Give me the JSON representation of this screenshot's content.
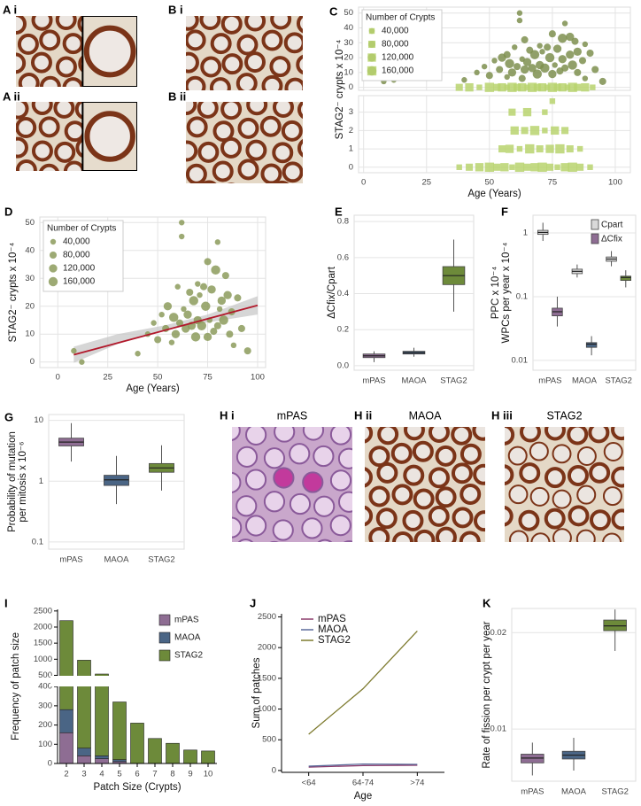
{
  "images": [
    {
      "label": "A i"
    },
    {
      "label": "A ii"
    },
    {
      "label": "B i"
    },
    {
      "label": "B ii"
    },
    {
      "label": "H i",
      "caption": "mPAS"
    },
    {
      "label": "H ii",
      "caption": "MAOA"
    },
    {
      "label": "H iii",
      "caption": "STAG2"
    }
  ],
  "chart_data": [
    {
      "type": "scatter",
      "panel": "C",
      "ylabel": "STAG2⁻ crypts x 10⁻⁴",
      "grid": true,
      "xlim": [
        -2,
        106
      ],
      "ylim": [
        -2,
        54
      ],
      "yticks": [
        0,
        10,
        20,
        30,
        40,
        50
      ],
      "size_legend": {
        "title": "Number of Crypts",
        "keys": [
          {
            "value": 40000,
            "label": "40,000"
          },
          {
            "value": 80000,
            "label": "80,000"
          },
          {
            "value": 120000,
            "label": "120,000"
          },
          {
            "value": 160000,
            "label": "160,000"
          }
        ]
      },
      "series": [
        {
          "marker": "circle",
          "color": "#7e8f4f",
          "x": [
            62,
            62,
            80,
            75,
            82,
            79,
            64,
            84,
            70,
            60,
            88,
            73,
            77,
            66,
            71,
            85,
            57,
            68,
            82,
            90,
            55,
            63,
            74,
            79,
            52,
            65,
            87,
            58,
            70,
            76,
            83,
            48,
            61,
            67,
            72,
            80,
            54,
            64,
            78,
            92,
            45,
            59,
            69,
            75,
            85,
            50,
            57,
            63,
            88,
            40,
            8,
            12,
            95
          ],
          "values": [
            50,
            45,
            43,
            36,
            34,
            33,
            32,
            31,
            28,
            27,
            29,
            27,
            26,
            25,
            24,
            24,
            22,
            22,
            22,
            23,
            20,
            19,
            20,
            19,
            18,
            17,
            18,
            16,
            15,
            15,
            15,
            14,
            14,
            13,
            13,
            13,
            12,
            12,
            11,
            12,
            10,
            10,
            9,
            9,
            10,
            8,
            7,
            6,
            6,
            5,
            4,
            5,
            4
          ],
          "sizes": [
            40000,
            40000,
            40000,
            80000,
            120000,
            160000,
            80000,
            80000,
            40000,
            40000,
            40000,
            80000,
            120000,
            80000,
            40000,
            120000,
            80000,
            160000,
            120000,
            80000,
            120000,
            40000,
            160000,
            120000,
            40000,
            120000,
            80000,
            160000,
            120000,
            40000,
            160000,
            40000,
            80000,
            120000,
            160000,
            80000,
            80000,
            120000,
            80000,
            80000,
            40000,
            120000,
            160000,
            120000,
            80000,
            80000,
            40000,
            80000,
            40000,
            40000,
            40000,
            40000,
            80000
          ]
        },
        {
          "marker": "square",
          "color": "#b8d46e",
          "x": [
            38,
            42,
            46,
            50,
            53,
            55,
            57,
            59,
            61,
            63,
            65,
            67,
            69,
            71,
            73,
            75,
            77,
            79,
            81,
            83,
            85,
            88,
            91
          ],
          "values": [
            0,
            0,
            0,
            0,
            0,
            0,
            0,
            0,
            0,
            0,
            0,
            0,
            0,
            0,
            0,
            0,
            0,
            0,
            0,
            0,
            0,
            0,
            0
          ],
          "sizes": [
            80000,
            120000,
            40000,
            160000,
            80000,
            120000,
            40000,
            160000,
            80000,
            120000,
            40000,
            160000,
            80000,
            120000,
            40000,
            160000,
            80000,
            120000,
            40000,
            160000,
            80000,
            120000,
            40000
          ]
        }
      ]
    },
    {
      "type": "scatter",
      "xlabel": "Age (Years)",
      "grid": true,
      "xlim": [
        -2,
        106
      ],
      "xticks": [
        0,
        25,
        50,
        75,
        100
      ],
      "ylim": [
        -0.3,
        3.9
      ],
      "yticks": [
        0,
        1,
        2,
        3
      ],
      "series": [
        {
          "marker": "square",
          "color": "#b8d46e",
          "x": [
            38,
            42,
            46,
            50,
            53,
            56,
            59,
            62,
            65,
            68,
            71,
            74,
            77,
            80,
            83,
            86,
            90,
            55,
            58,
            62,
            66,
            70,
            74,
            78,
            82,
            86,
            60,
            64,
            68,
            72,
            76,
            80,
            59,
            65,
            72,
            75
          ],
          "values": [
            0,
            0,
            0,
            0,
            0,
            0,
            0,
            0,
            0,
            0,
            0,
            0,
            0,
            0,
            0,
            0,
            0,
            1,
            1,
            1,
            1,
            1,
            1,
            1,
            1,
            1,
            2,
            2,
            2,
            2,
            2,
            2,
            3,
            3,
            3,
            3.6
          ],
          "sizes": [
            40000,
            80000,
            120000,
            160000,
            80000,
            120000,
            40000,
            160000,
            80000,
            120000,
            160000,
            80000,
            40000,
            120000,
            160000,
            80000,
            40000,
            80000,
            120000,
            40000,
            160000,
            80000,
            120000,
            160000,
            80000,
            40000,
            120000,
            80000,
            160000,
            40000,
            120000,
            80000,
            80000,
            120000,
            40000,
            40000
          ]
        }
      ]
    },
    {
      "type": "scatter",
      "panel": "D",
      "xlabel": "Age (Years)",
      "ylabel": "STAG2⁻ crypts x 10⁻⁴",
      "grid": true,
      "xlim": [
        -9,
        104
      ],
      "xticks": [
        0,
        25,
        50,
        75,
        100
      ],
      "ylim": [
        -2,
        52
      ],
      "yticks": [
        0,
        10,
        20,
        30,
        40,
        50
      ],
      "size_legend": {
        "title": "Number of Crypts",
        "keys": [
          {
            "value": 40000,
            "label": "40,000"
          },
          {
            "value": 80000,
            "label": "80,000"
          },
          {
            "value": 120000,
            "label": "120,000"
          },
          {
            "value": 160000,
            "label": "160,000"
          }
        ]
      },
      "band": {
        "color": "#c4c4c4",
        "x": [
          8,
          30,
          54,
          75,
          100
        ],
        "lower": [
          -0.3,
          6.5,
          11.6,
          14.2,
          17
        ],
        "upper": [
          5.5,
          10,
          13.2,
          17,
          23.6
        ]
      },
      "fit": {
        "color": "#b2182b",
        "x": [
          8,
          100
        ],
        "values": [
          2.6,
          20.3
        ]
      },
      "series": [
        {
          "marker": "circle",
          "color": "#8c9b5c",
          "x": [
            8,
            12,
            40,
            45,
            48,
            50,
            52,
            54,
            55,
            57,
            58,
            59,
            60,
            61,
            62,
            62,
            63,
            64,
            65,
            66,
            67,
            68,
            69,
            70,
            70,
            71,
            72,
            73,
            74,
            75,
            75,
            76,
            77,
            78,
            79,
            80,
            80,
            81,
            82,
            83,
            84,
            85,
            86,
            87,
            88,
            90,
            92,
            95
          ],
          "values": [
            4,
            0,
            3,
            10,
            14,
            8,
            17,
            12,
            20,
            7,
            16,
            10,
            27,
            14,
            50,
            45,
            19,
            12,
            17,
            25,
            13,
            22,
            9,
            28,
            15,
            24,
            13,
            27,
            20,
            36,
            9,
            15,
            26,
            11,
            33,
            43,
            13,
            19,
            22,
            15,
            31,
            24,
            10,
            18,
            6,
            23,
            12,
            4
          ],
          "sizes": [
            40000,
            40000,
            40000,
            40000,
            40000,
            80000,
            40000,
            80000,
            120000,
            40000,
            160000,
            120000,
            40000,
            80000,
            40000,
            40000,
            40000,
            120000,
            120000,
            80000,
            120000,
            160000,
            160000,
            40000,
            120000,
            40000,
            160000,
            80000,
            160000,
            80000,
            120000,
            40000,
            120000,
            80000,
            160000,
            40000,
            80000,
            40000,
            120000,
            160000,
            80000,
            120000,
            80000,
            80000,
            40000,
            80000,
            80000,
            80000
          ]
        }
      ]
    },
    {
      "type": "box",
      "panel": "E",
      "ylabel": "ΔCfix/Cpart",
      "grid": true,
      "categories": [
        "mPAS",
        "MAOA",
        "STAG2"
      ],
      "ylim": [
        -0.025,
        0.835
      ],
      "yticks": [
        {
          "value": 0,
          "label": "0.0"
        },
        0.2,
        0.4,
        0.6,
        0.8
      ],
      "series": [
        {
          "colors": [
            "#8e6d93",
            "#4a6585",
            "#6d8a3a"
          ],
          "low": [
            0.02,
            0.05,
            0.3
          ],
          "q1": [
            0.045,
            0.065,
            0.45
          ],
          "median": [
            0.055,
            0.072,
            0.5
          ],
          "q3": [
            0.065,
            0.08,
            0.55
          ],
          "high": [
            0.08,
            0.1,
            0.7
          ]
        }
      ]
    },
    {
      "type": "box",
      "panel": "F",
      "ylabel": [
        "PPC x 10⁻⁴",
        "WPCs per year x 10⁻⁴"
      ],
      "grid": true,
      "log_y": true,
      "categories": [
        "mPAS",
        "MAOA",
        "STAG2"
      ],
      "ylim": [
        0.007,
        1.9
      ],
      "yticks": [
        0.01,
        0.1,
        1
      ],
      "series": [
        {
          "name": "Cpart",
          "color": "#d9d9d9",
          "low": [
            0.75,
            0.2,
            0.3
          ],
          "q1": [
            0.95,
            0.23,
            0.36
          ],
          "median": [
            1.02,
            0.25,
            0.39
          ],
          "q3": [
            1.1,
            0.27,
            0.42
          ],
          "high": [
            1.45,
            0.32,
            0.52
          ]
        },
        {
          "name": "ΔCfix",
          "colors": [
            "#8e6d93",
            "#4a6585",
            "#6d8a3a"
          ],
          "low": [
            0.034,
            0.012,
            0.14
          ],
          "q1": [
            0.05,
            0.016,
            0.18
          ],
          "median": [
            0.058,
            0.018,
            0.2
          ],
          "q3": [
            0.066,
            0.019,
            0.21
          ],
          "high": [
            0.1,
            0.024,
            0.26
          ]
        }
      ]
    },
    {
      "type": "box",
      "panel": "G",
      "ylabel": [
        "Probability of mutation",
        "per mitosis x 10⁻⁶"
      ],
      "grid": true,
      "log_y": true,
      "categories": [
        "mPAS",
        "MAOA",
        "STAG2"
      ],
      "ylim": [
        0.076,
        12.5
      ],
      "yticks": [
        0.1,
        1,
        10
      ],
      "series": [
        {
          "colors": [
            "#8e6d93",
            "#4a6585",
            "#6d8a3a"
          ],
          "low": [
            2.1,
            0.42,
            0.7
          ],
          "q1": [
            3.8,
            0.85,
            1.4
          ],
          "median": [
            4.4,
            1.05,
            1.65
          ],
          "q3": [
            5.1,
            1.25,
            1.95
          ],
          "high": [
            9,
            2.6,
            3.9
          ]
        }
      ]
    },
    {
      "type": "bar",
      "panel": "I",
      "xlabel": "Patch Size (Crypts)",
      "ylabel": "Frequency of patch size",
      "grid": false,
      "categories": [
        "2",
        "3",
        "4",
        "5",
        "6",
        "7",
        "8",
        "9",
        "10"
      ],
      "ylim": [
        0,
        2550
      ],
      "ybreak": [
        410,
        430
      ],
      "yticks": [
        0,
        100,
        200,
        300,
        400,
        500,
        1000,
        1500,
        2000,
        2500
      ],
      "series": [
        {
          "name": "mPAS",
          "color": "#8e6d93",
          "values": [
            160,
            40,
            25,
            10,
            0,
            0,
            0,
            0,
            0
          ]
        },
        {
          "name": "MAOA",
          "color": "#4a6585",
          "values": [
            120,
            40,
            15,
            10,
            0,
            0,
            0,
            0,
            0
          ]
        },
        {
          "name": "STAG2",
          "color": "#6d8a3a",
          "values": [
            1920,
            890,
            500,
            300,
            210,
            130,
            105,
            70,
            65
          ]
        }
      ]
    },
    {
      "type": "line",
      "panel": "J",
      "xlabel": "Age",
      "ylabel": "Sum of patches",
      "grid": false,
      "categories": [
        "<64",
        "64-74",
        ">74"
      ],
      "ylim": [
        -30,
        2550
      ],
      "yticks": [
        0,
        500,
        1000,
        1500,
        2000,
        2500
      ],
      "series": [
        {
          "name": "mPAS",
          "color": "#8b3a6b",
          "values": [
            55,
            80,
            85
          ]
        },
        {
          "name": "MAOA",
          "color": "#5a6a9a",
          "values": [
            70,
            105,
            100
          ]
        },
        {
          "name": "STAG2",
          "color": "#7d7a2e",
          "values": [
            590,
            1330,
            2270
          ]
        }
      ]
    },
    {
      "type": "box",
      "panel": "K",
      "ylabel": "Rate of fission per crypt per year",
      "grid": true,
      "categories": [
        "mPAS",
        "MAOA",
        "STAG2"
      ],
      "ylim": [
        0.0046,
        0.0225
      ],
      "yticks": [
        0.01,
        0.02
      ],
      "series": [
        {
          "colors": [
            "#8e6d93",
            "#4a6585",
            "#6d8a3a"
          ],
          "low": [
            0.0052,
            0.0057,
            0.0181
          ],
          "q1": [
            0.0065,
            0.0069,
            0.0202
          ],
          "median": [
            0.007,
            0.0073,
            0.0207
          ],
          "q3": [
            0.0074,
            0.0077,
            0.0213
          ],
          "high": [
            0.0086,
            0.0091,
            0.0224
          ]
        }
      ]
    }
  ]
}
